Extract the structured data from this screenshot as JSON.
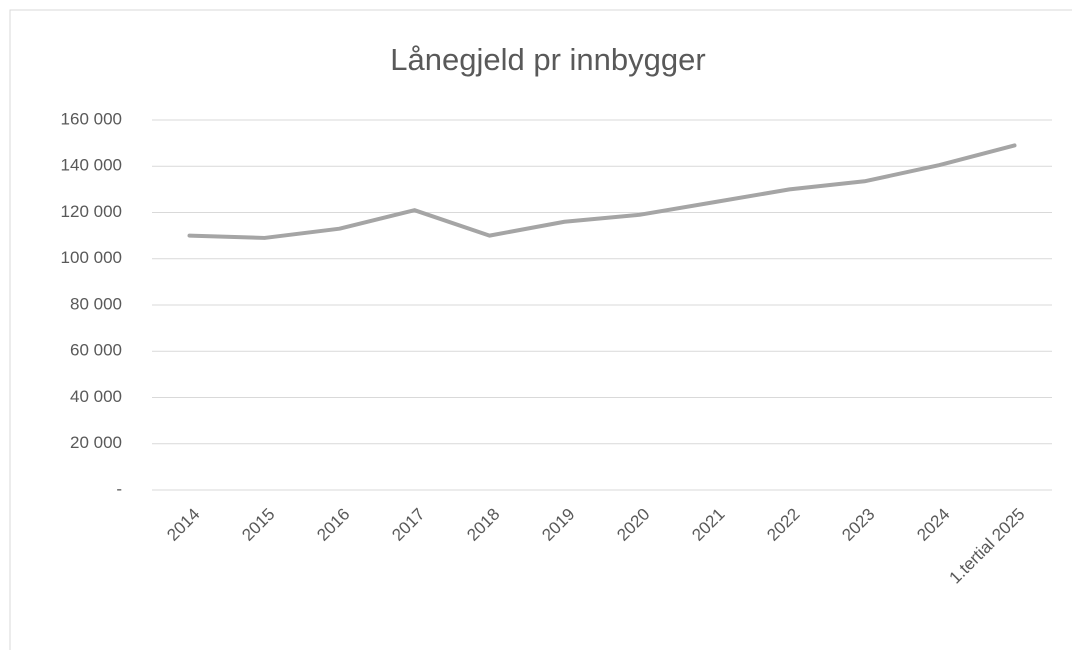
{
  "chart_data": {
    "type": "line",
    "title": "Lånegjeld pr innbygger",
    "categories": [
      "2014",
      "2015",
      "2016",
      "2017",
      "2018",
      "2019",
      "2020",
      "2021",
      "2022",
      "2023",
      "2024",
      "1.tertial 2025"
    ],
    "series": [
      {
        "color": "#a5a5a5",
        "values": [
          110000,
          109000,
          113000,
          121000,
          110000,
          116000,
          119000,
          124500,
          130000,
          133500,
          140500,
          149000
        ]
      }
    ],
    "ylim": [
      0,
      160000
    ],
    "yticks": [
      {
        "value": 0,
        "label": "-"
      },
      {
        "value": 20000,
        "label": "20 000"
      },
      {
        "value": 40000,
        "label": "40 000"
      },
      {
        "value": 60000,
        "label": "60 000"
      },
      {
        "value": 80000,
        "label": "80 000"
      },
      {
        "value": 100000,
        "label": "100 000"
      },
      {
        "value": 120000,
        "label": "120 000"
      },
      {
        "value": 140000,
        "label": "140 000"
      },
      {
        "value": 160000,
        "label": "160 000"
      }
    ],
    "grid": true
  }
}
